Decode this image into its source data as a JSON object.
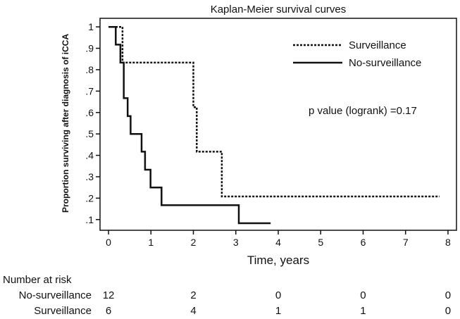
{
  "chart_data": {
    "type": "line",
    "subtype": "kaplan-meier-step",
    "title": "Kaplan-Meier survival curves",
    "xlabel": "Time, years",
    "ylabel": "Proportion surviving after diagnosis of iCCA",
    "xlim": [
      -0.2,
      8.2
    ],
    "ylim": [
      0.05,
      1.04
    ],
    "x_ticks": [
      0,
      1,
      2,
      3,
      4,
      5,
      6,
      7,
      8
    ],
    "x_tick_labels": [
      "0",
      "1",
      "2",
      "3",
      "4",
      "5",
      "6",
      "7",
      "8"
    ],
    "y_ticks": [
      1,
      0.9,
      0.8,
      0.7,
      0.6,
      0.5,
      0.4,
      0.3,
      0.2,
      0.1
    ],
    "y_tick_labels": [
      "1",
      ".9",
      ".8",
      ".7",
      ".6",
      ".5",
      ".4",
      ".3",
      ".2",
      ".1"
    ],
    "grid": false,
    "legend_position": "top-right",
    "series": [
      {
        "name": "Surveillance",
        "line_style": "dotted",
        "points": [
          [
            0,
            1
          ],
          [
            0.33,
            1
          ],
          [
            0.33,
            0.833
          ],
          [
            2.0,
            0.833
          ],
          [
            2.0,
            0.625
          ],
          [
            2.08,
            0.625
          ],
          [
            2.08,
            0.417
          ],
          [
            2.67,
            0.417
          ],
          [
            2.67,
            0.208
          ],
          [
            7.8,
            0.208
          ]
        ]
      },
      {
        "name": "No-surveillance",
        "line_style": "solid",
        "points": [
          [
            0,
            1
          ],
          [
            0.17,
            1
          ],
          [
            0.17,
            0.917
          ],
          [
            0.28,
            0.917
          ],
          [
            0.28,
            0.833
          ],
          [
            0.36,
            0.833
          ],
          [
            0.36,
            0.667
          ],
          [
            0.45,
            0.667
          ],
          [
            0.45,
            0.583
          ],
          [
            0.52,
            0.583
          ],
          [
            0.52,
            0.5
          ],
          [
            0.78,
            0.5
          ],
          [
            0.78,
            0.417
          ],
          [
            0.86,
            0.417
          ],
          [
            0.86,
            0.333
          ],
          [
            0.99,
            0.333
          ],
          [
            0.99,
            0.25
          ],
          [
            1.25,
            0.25
          ],
          [
            1.25,
            0.167
          ],
          [
            3.07,
            0.167
          ],
          [
            3.07,
            0.083
          ],
          [
            3.82,
            0.083
          ]
        ]
      }
    ],
    "annotation": "p value (logrank) =0.17",
    "risk_table": {
      "heading": "Number at risk",
      "times": [
        0,
        2,
        4,
        6,
        8
      ],
      "rows": [
        {
          "label": "No-surveillance",
          "values": [
            "12",
            "2",
            "0",
            "0",
            "0"
          ]
        },
        {
          "label": "Surveillance",
          "values": [
            "6",
            "4",
            "1",
            "1",
            "0"
          ]
        }
      ]
    }
  }
}
